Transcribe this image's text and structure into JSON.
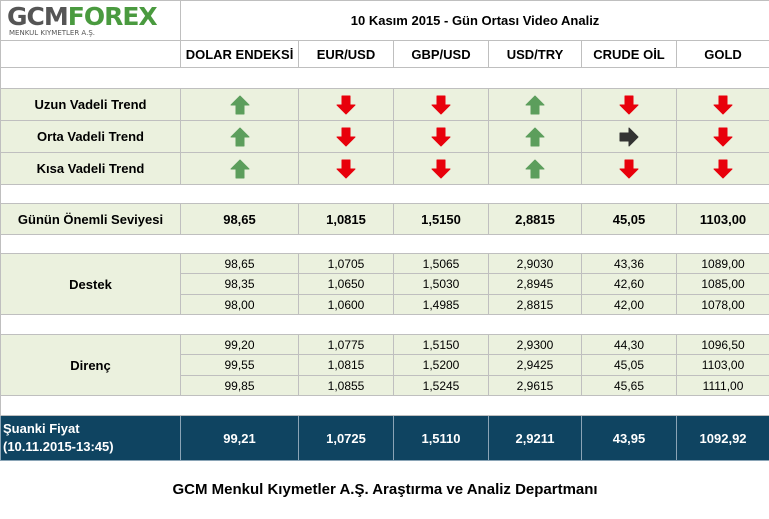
{
  "header": {
    "logo": {
      "part1": "GCM",
      "part2": "FOREX",
      "subtitle": "MENKUL KIYMETLER A.Ş."
    },
    "title": "10 Kasım 2015 - Gün Ortası Video Analiz"
  },
  "columns": [
    "DOLAR ENDEKSİ",
    "EUR/USD",
    "GBP/USD",
    "USD/TRY",
    "CRUDE OİL",
    "GOLD"
  ],
  "trends": {
    "labels": [
      "Uzun Vadeli Trend",
      "Orta Vadeli Trend",
      "Kısa Vadeli Trend"
    ]
  },
  "key_level": {
    "label": "Günün Önemli Seviyesi",
    "values": [
      "98,65",
      "1,0815",
      "1,5150",
      "2,8815",
      "45,05",
      "1103,00"
    ]
  },
  "support": {
    "label": "Destek",
    "rows": [
      [
        "98,65",
        "1,0705",
        "1,5065",
        "2,9030",
        "43,36",
        "1089,00"
      ],
      [
        "98,35",
        "1,0650",
        "1,5030",
        "2,8945",
        "42,60",
        "1085,00"
      ],
      [
        "98,00",
        "1,0600",
        "1,4985",
        "2,8815",
        "42,00",
        "1078,00"
      ]
    ]
  },
  "resistance": {
    "label": "Direnç",
    "rows": [
      [
        "99,20",
        "1,0775",
        "1,5150",
        "2,9300",
        "44,30",
        "1096,50"
      ],
      [
        "99,55",
        "1,0815",
        "1,5200",
        "2,9425",
        "45,05",
        "1103,00"
      ],
      [
        "99,85",
        "1,0855",
        "1,5245",
        "2,9615",
        "45,65",
        "1111,00"
      ]
    ]
  },
  "current_price": {
    "label": "Şuanki Fiyat",
    "time": "(10.11.2015-13:45)",
    "values": [
      "99,21",
      "1,0725",
      "1,5110",
      "2,9211",
      "43,95",
      "1092,92"
    ]
  },
  "footer": "GCM Menkul Kıymetler A.Ş. Araştırma ve Analiz Departmanı"
}
